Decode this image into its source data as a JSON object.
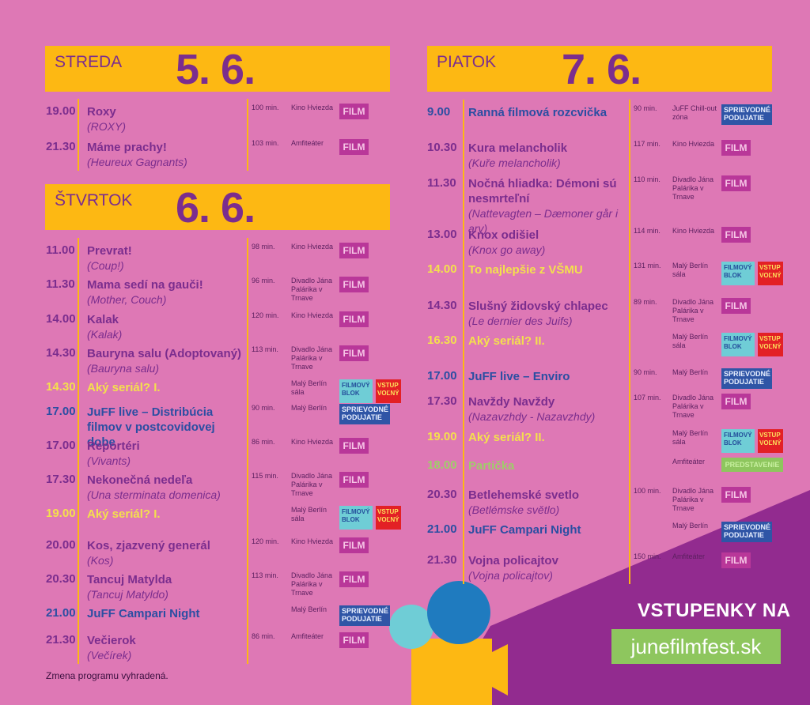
{
  "days": [
    {
      "day": "STREDA",
      "date": "5. 6.",
      "events": [
        {
          "time": "19.00",
          "title": "Roxy",
          "orig": "(ROXY)",
          "dur": "100 min.",
          "venue": "Kino Hviezda",
          "tags": [
            "FILM"
          ],
          "color": "purple"
        },
        {
          "time": "21.30",
          "title": "Máme prachy!",
          "orig": "(Heureux Gagnants)",
          "dur": "103 min.",
          "venue": "Amfiteáter",
          "tags": [
            "FILM"
          ],
          "color": "purple"
        }
      ]
    },
    {
      "day": "ŠTVRTOK",
      "date": "6. 6.",
      "events": [
        {
          "time": "11.00",
          "title": "Prevrat!",
          "orig": "(Coup!)",
          "dur": "98 min.",
          "venue": "Kino Hviezda",
          "tags": [
            "FILM"
          ],
          "color": "purple"
        },
        {
          "time": "11.30",
          "title": "Mama sedí na gauči!",
          "orig": "(Mother, Couch)",
          "dur": "96 min.",
          "venue": "Divadlo Jána Palárika v Trnave",
          "tags": [
            "FILM"
          ],
          "color": "purple"
        },
        {
          "time": "14.00",
          "title": "Kalak",
          "orig": "(Kalak)",
          "dur": "120 min.",
          "venue": "Kino Hviezda",
          "tags": [
            "FILM"
          ],
          "color": "purple"
        },
        {
          "time": "14.30",
          "title": "Bauryna salu (Adoptovaný)",
          "orig": "(Bauryna salu)",
          "dur": "113 min.",
          "venue": "Divadlo Jána Palárika v Trnave",
          "tags": [
            "FILM"
          ],
          "color": "purple"
        },
        {
          "time": "14.30",
          "title": "Aký seriál? I.",
          "orig": "",
          "dur": "",
          "venue": "Malý Berlín sála",
          "tags": [
            "FILMOVÝ BLOK",
            "VSTUP VOĽNÝ"
          ],
          "color": "yellow"
        },
        {
          "time": "17.00",
          "title": "JuFF live – Distribúcia filmov v postcovidovej dobe",
          "orig": "",
          "dur": "90 min.",
          "venue": "Malý Berlín",
          "tags": [
            "SPRIEVODNÉ PODUJATIE"
          ],
          "color": "blue"
        },
        {
          "time": "17.00",
          "title": "Reportéri",
          "orig": "(Vivants)",
          "dur": "86 min.",
          "venue": "Kino Hviezda",
          "tags": [
            "FILM"
          ],
          "color": "purple"
        },
        {
          "time": "17.30",
          "title": "Nekonečná nedeľa",
          "orig": "(Una sterminata domenica)",
          "dur": "115 min.",
          "venue": "Divadlo Jána Palárika v Trnave",
          "tags": [
            "FILM"
          ],
          "color": "purple"
        },
        {
          "time": "19.00",
          "title": "Aký seriál? I.",
          "orig": "",
          "dur": "",
          "venue": "Malý Berlín sála",
          "tags": [
            "FILMOVÝ BLOK",
            "VSTUP VOĽNÝ"
          ],
          "color": "yellow"
        },
        {
          "time": "20.00",
          "title": "Kos, zjazvený generál",
          "orig": "(Kos)",
          "dur": "120 min.",
          "venue": "Kino Hviezda",
          "tags": [
            "FILM"
          ],
          "color": "purple"
        },
        {
          "time": "20.30",
          "title": "Tancuj Matylda",
          "orig": "(Tancuj Matyldo)",
          "dur": "113 min.",
          "venue": "Divadlo Jána Palárika v Trnave",
          "tags": [
            "FILM"
          ],
          "color": "purple"
        },
        {
          "time": "21.00",
          "title": "JuFF Campari Night",
          "orig": "",
          "dur": "",
          "venue": "Malý Berlín",
          "tags": [
            "SPRIEVODNÉ PODUJATIE"
          ],
          "color": "blue"
        },
        {
          "time": "21.30",
          "title": "Večierok",
          "orig": "(Večírek)",
          "dur": "86 min.",
          "venue": "Amfiteáter",
          "tags": [
            "FILM"
          ],
          "color": "purple"
        }
      ]
    },
    {
      "day": "PIATOK",
      "date": "7. 6.",
      "events": [
        {
          "time": "9.00",
          "title": "Ranná filmová rozcvička",
          "orig": "",
          "dur": "90 min.",
          "venue": "JuFF Chill-out zóna",
          "tags": [
            "SPRIEVODNÉ PODUJATIE"
          ],
          "color": "blue"
        },
        {
          "time": "10.30",
          "title": "Kura melancholik",
          "orig": "(Kuře melancholik)",
          "dur": "117 min.",
          "venue": "Kino Hviezda",
          "tags": [
            "FILM"
          ],
          "color": "purple"
        },
        {
          "time": "11.30",
          "title": "Nočná hliadka: Démoni sú nesmrteľní",
          "orig": "(Nattevagten – Dæmoner går i arv)",
          "dur": "110 min.",
          "venue": "Divadlo Jána Palárika v Trnave",
          "tags": [
            "FILM"
          ],
          "color": "purple"
        },
        {
          "time": "13.00",
          "title": "Knox odišiel",
          "orig": "(Knox go away)",
          "dur": "114 min.",
          "venue": "Kino Hviezda",
          "tags": [
            "FILM"
          ],
          "color": "purple"
        },
        {
          "time": "14.00",
          "title": "To najlepšie z VŠMU",
          "orig": "",
          "dur": "131 min.",
          "venue": "Malý Berlín sála",
          "tags": [
            "FILMOVÝ BLOK",
            "VSTUP VOĽNÝ"
          ],
          "color": "yellow"
        },
        {
          "time": "14.30",
          "title": "Slušný židovský chlapec",
          "orig": "(Le dernier des Juifs)",
          "dur": "89 min.",
          "venue": "Divadlo Jána Palárika v Trnave",
          "tags": [
            "FILM"
          ],
          "color": "purple"
        },
        {
          "time": "16.30",
          "title": "Aký seriál? II.",
          "orig": "",
          "dur": "",
          "venue": "Malý Berlín sála",
          "tags": [
            "FILMOVÝ BLOK",
            "VSTUP VOĽNÝ"
          ],
          "color": "yellow"
        },
        {
          "time": "17.00",
          "title": "JuFF live – Enviro",
          "orig": "",
          "dur": "90 min.",
          "venue": "Malý Berlín",
          "tags": [
            "SPRIEVODNÉ PODUJATIE"
          ],
          "color": "blue"
        },
        {
          "time": "17.30",
          "title": "Navždy Navždy",
          "orig": "(Nazavzhdy - Nazavzhdy)",
          "dur": "107 min.",
          "venue": "Divadlo Jána Palárika v Trnave",
          "tags": [
            "FILM"
          ],
          "color": "purple"
        },
        {
          "time": "19.00",
          "title": "Aký seriál? II.",
          "orig": "",
          "dur": "",
          "venue": "Malý Berlín sála",
          "tags": [
            "FILMOVÝ BLOK",
            "VSTUP VOĽNÝ"
          ],
          "color": "yellow"
        },
        {
          "time": "18.00",
          "title": "Partička",
          "orig": "",
          "dur": "",
          "venue": "Amfiteáter",
          "tags": [
            "PREDSTAVENIE"
          ],
          "color": "green"
        },
        {
          "time": "20.30",
          "title": "Betlehemské svetlo",
          "orig": "(Betlémske světlo)",
          "dur": "100 min.",
          "venue": "Divadlo Jána Palárika v Trnave",
          "tags": [
            "FILM"
          ],
          "color": "purple"
        },
        {
          "time": "21.00",
          "title": "JuFF Campari Night",
          "orig": "",
          "dur": "",
          "venue": "Malý Berlín",
          "tags": [
            "SPRIEVODNÉ PODUJATIE"
          ],
          "color": "blue"
        },
        {
          "time": "21.30",
          "title": "Vojna policajtov",
          "orig": "(Vojna policajtov)",
          "dur": "150 min.",
          "venue": "Amfiteáter",
          "tags": [
            "FILM"
          ],
          "color": "purple"
        }
      ]
    }
  ],
  "note": "Zmena programu vyhradená.",
  "promo": {
    "label": "VSTUPENKY NA",
    "url": "junefilmfest.sk"
  },
  "colors": {
    "background": "#de78b5",
    "bar": "#fdb813",
    "purple": "#7b2d8e",
    "blue": "#2b4ea2",
    "yellow": "#f4e04d",
    "green": "#9fcd6a",
    "triangle": "#922b8f"
  }
}
